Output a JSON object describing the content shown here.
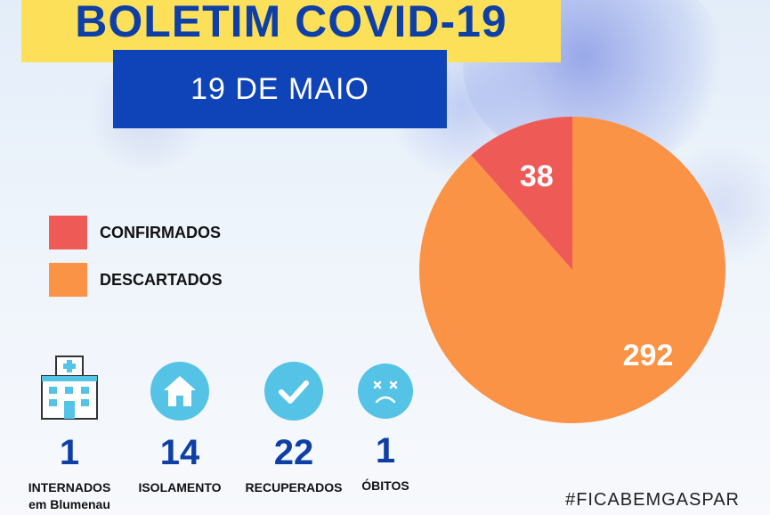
{
  "title": "BOLETIM COVID-19",
  "date": "19 DE MAIO",
  "legend": [
    {
      "label": "CONFIRMADOS",
      "color": "#ee5b57"
    },
    {
      "label": "DESCARTADOS",
      "color": "#fb9347"
    }
  ],
  "chart_data": {
    "type": "pie",
    "slices": [
      {
        "name": "CONFIRMADOS",
        "value": 38,
        "label": "38",
        "color": "#ee5b57"
      },
      {
        "name": "DESCARTADOS",
        "value": 292,
        "label": "292",
        "color": "#fb9347"
      }
    ]
  },
  "stats": [
    {
      "icon": "hospital-icon",
      "value": "1",
      "label_line1": "INTERNADOS",
      "label_line2": "em Blumenau"
    },
    {
      "icon": "house-icon",
      "value": "14",
      "label_line1": "ISOLAMENTO",
      "label_line2": ""
    },
    {
      "icon": "checkmark-icon",
      "value": "22",
      "label_line1": "RECUPERADOS",
      "label_line2": ""
    },
    {
      "icon": "sad-face-icon",
      "value": "1",
      "label_line1": "ÓBITOS",
      "label_line2": ""
    }
  ],
  "hashtag": "#FICABEMGASPAR",
  "colors": {
    "title_bg": "#fde05a",
    "title_text": "#0d3fa6",
    "date_bg": "#0f43b8",
    "icon_circle": "#55c3e6"
  }
}
